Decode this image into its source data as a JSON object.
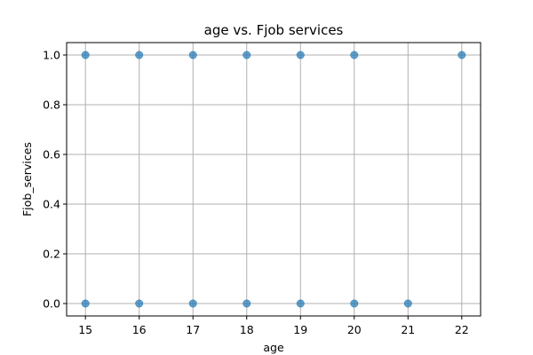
{
  "chart_data": {
    "type": "scatter",
    "title": "age vs. Fjob services",
    "xlabel": "age",
    "ylabel": "Fjob_services",
    "xlim": [
      14.65,
      22.35
    ],
    "ylim": [
      -0.05,
      1.05
    ],
    "xticks": [
      15,
      16,
      17,
      18,
      19,
      20,
      21,
      22
    ],
    "yticks": [
      0.0,
      0.2,
      0.4,
      0.6,
      0.8,
      1.0
    ],
    "ytick_labels": [
      "0.0",
      "0.2",
      "0.4",
      "0.6",
      "0.8",
      "1.0"
    ],
    "grid": true,
    "marker_color": "#1f77b4",
    "points": [
      {
        "x": 15,
        "y": 1
      },
      {
        "x": 16,
        "y": 1
      },
      {
        "x": 17,
        "y": 1
      },
      {
        "x": 18,
        "y": 1
      },
      {
        "x": 19,
        "y": 1
      },
      {
        "x": 20,
        "y": 1
      },
      {
        "x": 22,
        "y": 1
      },
      {
        "x": 15,
        "y": 0
      },
      {
        "x": 16,
        "y": 0
      },
      {
        "x": 17,
        "y": 0
      },
      {
        "x": 18,
        "y": 0
      },
      {
        "x": 19,
        "y": 0
      },
      {
        "x": 20,
        "y": 0
      },
      {
        "x": 21,
        "y": 0
      }
    ]
  }
}
